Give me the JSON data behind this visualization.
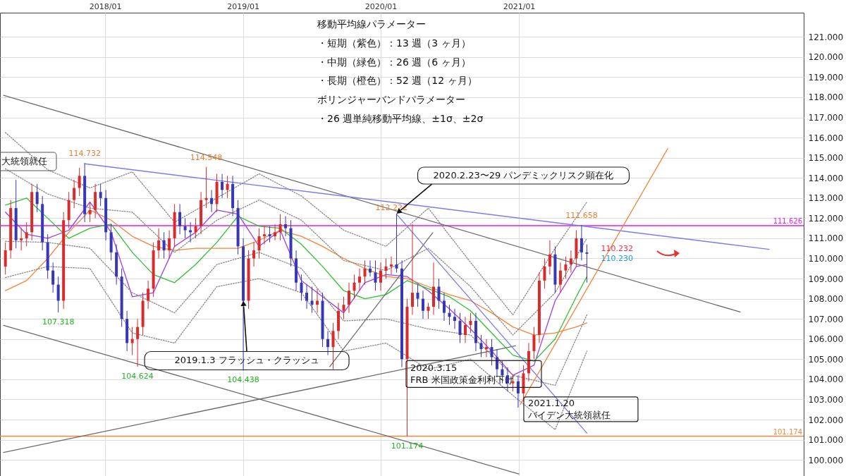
{
  "chart_data": {
    "type": "candlestick",
    "x": [
      "2017-04-12",
      "2017-04-26",
      "2017-05-10",
      "2017-05-24",
      "2017-06-07",
      "2017-06-21",
      "2017-07-05",
      "2017-07-19",
      "2017-08-02",
      "2017-08-16",
      "2017-08-30",
      "2017-09-13",
      "2017-09-27",
      "2017-10-11",
      "2017-10-25",
      "2017-11-08",
      "2017-11-22",
      "2017-12-06",
      "2017-12-20",
      "2018-01-03",
      "2018-01-17",
      "2018-01-31",
      "2018-02-14",
      "2018-02-28",
      "2018-03-14",
      "2018-03-28",
      "2018-04-11",
      "2018-04-25",
      "2018-05-09",
      "2018-05-23",
      "2018-06-06",
      "2018-06-20",
      "2018-07-04",
      "2018-07-18",
      "2018-08-01",
      "2018-08-15",
      "2018-08-29",
      "2018-09-12",
      "2018-09-26",
      "2018-10-10",
      "2018-10-24",
      "2018-11-07",
      "2018-11-21",
      "2018-12-05",
      "2018-12-19",
      "2019-01-02",
      "2019-01-16",
      "2019-01-30",
      "2019-02-13",
      "2019-02-27",
      "2019-03-13",
      "2019-03-27",
      "2019-04-10",
      "2019-04-24",
      "2019-05-08",
      "2019-05-22",
      "2019-06-05",
      "2019-06-19",
      "2019-07-03",
      "2019-07-17",
      "2019-07-31",
      "2019-08-14",
      "2019-08-28",
      "2019-09-11",
      "2019-09-25",
      "2019-10-09",
      "2019-10-23",
      "2019-11-06",
      "2019-11-20",
      "2019-12-04",
      "2019-12-18",
      "2020-01-01",
      "2020-01-15",
      "2020-01-29",
      "2020-02-12",
      "2020-02-26",
      "2020-03-11",
      "2020-03-25",
      "2020-04-08",
      "2020-04-22",
      "2020-05-06",
      "2020-05-20",
      "2020-06-03",
      "2020-06-17",
      "2020-07-01",
      "2020-07-15",
      "2020-07-29",
      "2020-08-12",
      "2020-08-26",
      "2020-09-09",
      "2020-09-23",
      "2020-10-07",
      "2020-10-21",
      "2020-11-04",
      "2020-11-18",
      "2020-12-02",
      "2020-12-16",
      "2020-12-30",
      "2021-01-13",
      "2021-01-27",
      "2021-02-10",
      "2021-02-24",
      "2021-03-10",
      "2021-03-24",
      "2021-04-07",
      "2021-04-21",
      "2021-05-05",
      "2021-05-19",
      "2021-06-02",
      "2021-06-16",
      "2021-06-30"
    ],
    "ohlc": [
      [
        109.6,
        110.8,
        109.2,
        110.4
      ],
      [
        110.4,
        112.9,
        110.0,
        112.5
      ],
      [
        112.5,
        113.9,
        110.5,
        110.9
      ],
      [
        110.9,
        111.5,
        110.4,
        111.0
      ],
      [
        111.0,
        111.8,
        110.6,
        111.3
      ],
      [
        111.3,
        113.7,
        110.9,
        113.3
      ],
      [
        113.3,
        113.7,
        112.3,
        112.7
      ],
      [
        112.7,
        113.1,
        110.4,
        110.8
      ],
      [
        110.8,
        111.2,
        109.0,
        109.4
      ],
      [
        109.4,
        109.8,
        108.3,
        108.7
      ],
      [
        108.7,
        109.1,
        107.318,
        107.9
      ],
      [
        107.9,
        112.3,
        107.5,
        111.9
      ],
      [
        111.9,
        113.3,
        111.5,
        112.9
      ],
      [
        112.9,
        113.9,
        112.5,
        113.5
      ],
      [
        113.5,
        114.5,
        113.1,
        114.1
      ],
      [
        114.1,
        114.732,
        111.8,
        112.2
      ],
      [
        112.2,
        112.8,
        111.8,
        112.4
      ],
      [
        112.4,
        113.7,
        112.0,
        113.3
      ],
      [
        113.3,
        113.7,
        112.6,
        113.0
      ],
      [
        113.0,
        113.4,
        110.9,
        111.3
      ],
      [
        111.3,
        111.7,
        109.9,
        110.3
      ],
      [
        110.3,
        110.7,
        108.7,
        109.1
      ],
      [
        109.1,
        109.5,
        106.6,
        107.0
      ],
      [
        107.0,
        107.4,
        105.4,
        105.8
      ],
      [
        105.8,
        106.6,
        105.2,
        106.0
      ],
      [
        106.0,
        107.0,
        104.624,
        106.6
      ],
      [
        106.6,
        108.3,
        106.2,
        107.9
      ],
      [
        107.9,
        108.9,
        107.5,
        108.5
      ],
      [
        108.5,
        110.8,
        108.1,
        110.4
      ],
      [
        110.4,
        111.5,
        110.0,
        110.9
      ],
      [
        110.9,
        111.3,
        110.0,
        110.4
      ],
      [
        110.4,
        111.4,
        110.0,
        111.0
      ],
      [
        111.0,
        112.7,
        110.6,
        112.3
      ],
      [
        112.3,
        112.7,
        111.2,
        111.6
      ],
      [
        111.6,
        112.0,
        111.0,
        111.4
      ],
      [
        111.4,
        111.8,
        110.8,
        111.3
      ],
      [
        111.3,
        112.0,
        111.0,
        111.6
      ],
      [
        111.6,
        113.3,
        111.2,
        112.9
      ],
      [
        112.9,
        114.548,
        112.5,
        113.0
      ],
      [
        113.0,
        113.4,
        112.3,
        112.7
      ],
      [
        112.7,
        114.2,
        112.3,
        113.8
      ],
      [
        113.8,
        114.2,
        113.0,
        113.4
      ],
      [
        113.4,
        114.1,
        113.0,
        113.7
      ],
      [
        113.7,
        114.1,
        112.1,
        112.5
      ],
      [
        112.5,
        112.9,
        110.2,
        110.6
      ],
      [
        110.6,
        111.0,
        104.438,
        107.9
      ],
      [
        107.9,
        110.4,
        107.5,
        110.0
      ],
      [
        110.0,
        110.8,
        109.6,
        110.4
      ],
      [
        110.4,
        111.5,
        110.0,
        111.1
      ],
      [
        111.1,
        111.6,
        110.7,
        111.2
      ],
      [
        111.2,
        111.6,
        110.8,
        111.1
      ],
      [
        111.1,
        111.7,
        110.9,
        111.3
      ],
      [
        111.3,
        112.2,
        110.9,
        111.7
      ],
      [
        111.7,
        112.1,
        111.1,
        111.5
      ],
      [
        111.5,
        111.9,
        109.6,
        110.0
      ],
      [
        110.0,
        110.4,
        108.4,
        108.8
      ],
      [
        108.8,
        109.2,
        107.9,
        108.3
      ],
      [
        108.3,
        108.7,
        107.5,
        107.9
      ],
      [
        107.9,
        108.6,
        107.3,
        107.7
      ],
      [
        107.7,
        108.5,
        107.3,
        107.9
      ],
      [
        107.9,
        108.3,
        105.6,
        106.0
      ],
      [
        106.0,
        106.4,
        105.2,
        105.6
      ],
      [
        105.6,
        106.8,
        104.5,
        106.4
      ],
      [
        106.4,
        107.8,
        106.0,
        107.4
      ],
      [
        107.4,
        108.1,
        107.0,
        107.7
      ],
      [
        107.7,
        108.8,
        107.3,
        108.4
      ],
      [
        108.4,
        109.2,
        108.0,
        108.8
      ],
      [
        108.8,
        109.5,
        108.4,
        109.1
      ],
      [
        109.1,
        109.9,
        108.7,
        109.5
      ],
      [
        109.5,
        109.9,
        109.1,
        109.3
      ],
      [
        109.3,
        109.9,
        108.4,
        108.8
      ],
      [
        108.8,
        109.8,
        108.4,
        109.4
      ],
      [
        109.4,
        110.0,
        109.0,
        109.6
      ],
      [
        109.6,
        110.1,
        109.2,
        109.7
      ],
      [
        109.7,
        112.222,
        109.3,
        109.5
      ],
      [
        109.5,
        109.9,
        104.6,
        105.0
      ],
      [
        105.0,
        108.0,
        101.174,
        107.6
      ],
      [
        107.6,
        111.7,
        107.2,
        108.3
      ],
      [
        108.3,
        108.7,
        107.6,
        108.0
      ],
      [
        108.0,
        108.4,
        107.0,
        107.4
      ],
      [
        107.4,
        107.8,
        107.0,
        107.6
      ],
      [
        107.6,
        109.8,
        107.2,
        108.6
      ],
      [
        108.6,
        109.0,
        107.5,
        107.9
      ],
      [
        107.9,
        108.3,
        106.9,
        107.3
      ],
      [
        107.3,
        107.7,
        106.7,
        107.1
      ],
      [
        107.1,
        107.5,
        106.5,
        106.9
      ],
      [
        106.9,
        107.3,
        105.8,
        106.2
      ],
      [
        106.2,
        107.1,
        105.8,
        106.7
      ],
      [
        106.7,
        107.3,
        106.3,
        106.9
      ],
      [
        106.9,
        107.3,
        105.4,
        105.8
      ],
      [
        105.8,
        106.2,
        105.1,
        105.5
      ],
      [
        105.5,
        106.0,
        105.1,
        105.6
      ],
      [
        105.6,
        106.0,
        104.7,
        105.1
      ],
      [
        105.1,
        105.5,
        104.1,
        104.5
      ],
      [
        104.5,
        104.9,
        103.8,
        104.2
      ],
      [
        104.2,
        104.6,
        103.4,
        103.8
      ],
      [
        103.8,
        104.2,
        103.4,
        103.9
      ],
      [
        103.9,
        104.2,
        102.6,
        103.3
      ],
      [
        103.3,
        104.7,
        102.9,
        104.3
      ],
      [
        104.3,
        105.8,
        103.9,
        105.4
      ],
      [
        105.4,
        106.6,
        105.0,
        106.2
      ],
      [
        106.2,
        109.3,
        105.8,
        108.9
      ],
      [
        108.9,
        110.0,
        108.5,
        109.6
      ],
      [
        109.6,
        110.9,
        109.2,
        110.2
      ],
      [
        110.2,
        110.6,
        108.3,
        108.7
      ],
      [
        108.7,
        109.8,
        108.3,
        109.4
      ],
      [
        109.4,
        110.1,
        109.0,
        109.7
      ],
      [
        109.7,
        110.4,
        109.3,
        110.0
      ],
      [
        110.0,
        111.4,
        109.6,
        111.0
      ],
      [
        111.0,
        111.658,
        109.9,
        110.3
      ],
      [
        110.3,
        110.7,
        108.8,
        110.232
      ]
    ],
    "colors": [
      "#d92b2b",
      "#d92b2b",
      "#3737b8",
      "#d92b2b",
      "#d92b2b",
      "#d92b2b",
      "#3737b8",
      "#3737b8",
      "#3737b8",
      "#3737b8",
      "#3737b8",
      "#d92b2b",
      "#d92b2b",
      "#d92b2b",
      "#d92b2b",
      "#3737b8",
      "#d92b2b",
      "#d92b2b",
      "#3737b8",
      "#3737b8",
      "#3737b8",
      "#3737b8",
      "#3737b8",
      "#3737b8",
      "#d92b2b",
      "#d92b2b",
      "#d92b2b",
      "#d92b2b",
      "#d92b2b",
      "#d92b2b",
      "#3737b8",
      "#d92b2b",
      "#d92b2b",
      "#3737b8",
      "#3737b8",
      "#3737b8",
      "#d92b2b",
      "#d92b2b",
      "#d92b2b",
      "#3737b8",
      "#d92b2b",
      "#3737b8",
      "#d92b2b",
      "#3737b8",
      "#3737b8",
      "#3737b8",
      "#d92b2b",
      "#d92b2b",
      "#d92b2b",
      "#d92b2b",
      "#3737b8",
      "#d92b2b",
      "#d92b2b",
      "#3737b8",
      "#3737b8",
      "#3737b8",
      "#3737b8",
      "#3737b8",
      "#3737b8",
      "#d92b2b",
      "#3737b8",
      "#3737b8",
      "#d92b2b",
      "#d92b2b",
      "#d92b2b",
      "#d92b2b",
      "#d92b2b",
      "#d92b2b",
      "#d92b2b",
      "#3737b8",
      "#3737b8",
      "#d92b2b",
      "#d92b2b",
      "#d92b2b",
      "#3737b8",
      "#3737b8",
      "#d92b2b",
      "#d92b2b",
      "#3737b8",
      "#3737b8",
      "#d92b2b",
      "#d92b2b",
      "#3737b8",
      "#3737b8",
      "#3737b8",
      "#3737b8",
      "#3737b8",
      "#d92b2b",
      "#d92b2b",
      "#3737b8",
      "#3737b8",
      "#d92b2b",
      "#3737b8",
      "#3737b8",
      "#3737b8",
      "#3737b8",
      "#d92b2b",
      "#3737b8",
      "#d92b2b",
      "#d92b2b",
      "#d92b2b",
      "#d92b2b",
      "#d92b2b",
      "#d92b2b",
      "#3737b8",
      "#d92b2b",
      "#d92b2b",
      "#d92b2b",
      "#d92b2b",
      "#3737b8",
      "#3737b8"
    ],
    "series": [
      {
        "type": "line",
        "color": "#a23ee8",
        "x": [
          "2017-04-12",
          "2017-06-07",
          "2017-08-02",
          "2017-09-27",
          "2017-11-22",
          "2018-01-17",
          "2018-03-14",
          "2018-05-09",
          "2018-07-04",
          "2018-08-29",
          "2018-10-24",
          "2018-12-19",
          "2019-02-13",
          "2019-04-10",
          "2019-06-05",
          "2019-07-31",
          "2019-09-25",
          "2019-11-20",
          "2020-01-15",
          "2020-03-11",
          "2020-05-06",
          "2020-07-01",
          "2020-08-26",
          "2020-10-21",
          "2020-12-16",
          "2021-02-10",
          "2021-04-07",
          "2021-06-02",
          "2021-06-30"
        ],
        "values": [
          112.3,
          111.2,
          111.0,
          111.4,
          112.8,
          111.3,
          108.1,
          108.3,
          110.6,
          111.3,
          112.4,
          112.2,
          110.6,
          111.4,
          108.9,
          108.1,
          107.3,
          108.8,
          109.2,
          109.1,
          108.4,
          107.5,
          106.5,
          105.4,
          104.2,
          104.7,
          107.9,
          109.6,
          109.7
        ]
      },
      {
        "type": "line",
        "color": "#2ec02e",
        "x": [
          "2017-04-12",
          "2017-06-07",
          "2017-08-02",
          "2017-09-27",
          "2017-11-22",
          "2018-01-17",
          "2018-03-14",
          "2018-05-09",
          "2018-07-04",
          "2018-08-29",
          "2018-10-24",
          "2018-12-19",
          "2019-02-13",
          "2019-04-10",
          "2019-06-05",
          "2019-07-31",
          "2019-09-25",
          "2019-11-20",
          "2020-01-15",
          "2020-03-11",
          "2020-05-06",
          "2020-07-01",
          "2020-08-26",
          "2020-10-21",
          "2020-12-16",
          "2021-02-10",
          "2021-04-07",
          "2021-06-02",
          "2021-06-30"
        ],
        "values": [
          112.65,
          113.0,
          112.0,
          111.0,
          111.5,
          111.7,
          110.3,
          109.2,
          108.8,
          109.7,
          110.8,
          112.1,
          111.6,
          111.5,
          110.7,
          109.6,
          108.4,
          108.0,
          108.2,
          108.9,
          108.5,
          108.1,
          107.4,
          106.3,
          105.2,
          104.9,
          106.0,
          108.1,
          109.1
        ]
      },
      {
        "type": "line",
        "color": "#f5843a",
        "x": [
          "2017-04-12",
          "2017-06-07",
          "2017-08-02",
          "2017-09-27",
          "2017-11-22",
          "2018-01-17",
          "2018-03-14",
          "2018-05-09",
          "2018-07-04",
          "2018-08-29",
          "2018-10-24",
          "2018-12-19",
          "2019-02-13",
          "2019-04-10",
          "2019-06-05",
          "2019-07-31",
          "2019-09-25",
          "2019-11-20",
          "2020-01-15",
          "2020-03-11",
          "2020-05-06",
          "2020-07-01",
          "2020-08-26",
          "2020-10-21",
          "2020-12-16",
          "2021-02-10",
          "2021-04-07",
          "2021-06-02",
          "2021-06-30"
        ],
        "values": [
          108.4,
          108.9,
          110.0,
          111.3,
          112.4,
          111.9,
          111.1,
          110.6,
          110.4,
          110.5,
          110.5,
          110.5,
          110.9,
          111.4,
          111.1,
          110.6,
          110.0,
          109.5,
          109.1,
          109.0,
          108.6,
          108.2,
          107.9,
          107.3,
          106.6,
          106.2,
          106.3,
          106.6,
          106.8
        ]
      },
      {
        "type": "line",
        "color": "#888888",
        "line_style": "dotted",
        "x": [
          "2017-04-12",
          "2017-08-02",
          "2017-11-22",
          "2018-03-14",
          "2018-07-04",
          "2018-10-24",
          "2019-02-13",
          "2019-06-05",
          "2019-09-25",
          "2020-01-15",
          "2020-05-06",
          "2020-08-26",
          "2020-12-16",
          "2021-04-07",
          "2021-06-30"
        ],
        "values": [
          116.25,
          114.4,
          113.5,
          114.3,
          111.8,
          113.0,
          114.2,
          113.1,
          111.4,
          110.6,
          112.5,
          109.8,
          107.2,
          110.5,
          112.8
        ]
      },
      {
        "type": "line",
        "color": "#888888",
        "line_style": "dotted",
        "x": [
          "2017-04-12",
          "2017-08-02",
          "2017-11-22",
          "2018-03-14",
          "2018-07-04",
          "2018-10-24",
          "2019-02-13",
          "2019-06-05",
          "2019-09-25",
          "2020-01-15",
          "2020-05-06",
          "2020-08-26",
          "2020-12-16",
          "2021-04-07",
          "2021-06-30"
        ],
        "values": [
          114.45,
          113.2,
          112.5,
          112.3,
          110.3,
          111.9,
          112.9,
          111.9,
          109.9,
          109.4,
          110.5,
          108.6,
          106.2,
          108.3,
          111.0
        ]
      },
      {
        "type": "line",
        "color": "#888888",
        "line_style": "dotted",
        "x": [
          "2017-04-12",
          "2017-08-02",
          "2017-11-22",
          "2018-03-14",
          "2018-07-04",
          "2018-10-24",
          "2019-02-13",
          "2019-06-05",
          "2019-09-25",
          "2020-01-15",
          "2020-05-06",
          "2020-08-26",
          "2020-12-16",
          "2021-04-07",
          "2021-06-30"
        ],
        "values": [
          110.85,
          110.8,
          110.5,
          108.3,
          107.3,
          109.7,
          110.3,
          109.5,
          106.9,
          107.0,
          106.5,
          106.2,
          104.2,
          103.7,
          107.2
        ]
      },
      {
        "type": "line",
        "color": "#888888",
        "line_style": "dotted",
        "x": [
          "2017-04-12",
          "2017-08-02",
          "2017-11-22",
          "2018-03-14",
          "2018-07-04",
          "2018-10-24",
          "2019-02-13",
          "2019-06-05",
          "2019-09-25",
          "2020-01-15",
          "2020-05-06",
          "2020-08-26",
          "2020-12-16",
          "2021-04-07",
          "2021-06-30"
        ],
        "values": [
          109.05,
          109.6,
          109.5,
          106.3,
          105.8,
          108.6,
          109.0,
          108.3,
          105.4,
          105.8,
          104.5,
          105.0,
          103.2,
          101.5,
          105.4
        ]
      },
      {
        "type": "line",
        "color": "#6b6b6b",
        "x": [
          "2017-04-07",
          "2022-08-10"
        ],
        "values": [
          118.1,
          107.34
        ]
      },
      {
        "type": "line",
        "color": "#6b6b6b",
        "x": [
          "2017-04-07",
          "2021-01-01"
        ],
        "values": [
          106.68,
          99.3
        ]
      },
      {
        "type": "line",
        "color": "#6b6b6b",
        "x": [
          "2017-04-07",
          "2020-12-23"
        ],
        "values": [
          100.37,
          105.66
        ]
      },
      {
        "type": "line",
        "color": "#6b6b6b",
        "x": [
          "2019-08-19",
          "2020-05-18"
        ],
        "values": [
          104.63,
          111.28
        ]
      },
      {
        "type": "line",
        "color": "#7b7bef",
        "x": [
          "2017-11-08",
          "2022-10-26"
        ],
        "values": [
          114.7,
          110.45
        ]
      },
      {
        "type": "line",
        "color": "#7b7bef",
        "x": [
          "2020-02-12",
          "2021-06-30"
        ],
        "values": [
          112.2,
          101.33
        ]
      },
      {
        "type": "line",
        "color": "#f5843a",
        "x": [
          "2021-01-05",
          "2022-01-30"
        ],
        "values": [
          102.76,
          115.45
        ]
      }
    ],
    "xlim": [
      "2017-04-07",
      "2023-01-16"
    ],
    "ylim": [
      99.2,
      122.2
    ],
    "xticks": [
      {
        "value": "2018-01-01",
        "label": "2018/01"
      },
      {
        "value": "2019-01-01",
        "label": "2019/01"
      },
      {
        "value": "2020-01-01",
        "label": "2020/01"
      },
      {
        "value": "2021-01-01",
        "label": "2021/01"
      }
    ],
    "yticks": [
      {
        "value": 100,
        "label": "100.000"
      },
      {
        "value": 101,
        "label": "101.000"
      },
      {
        "value": 102,
        "label": "102.000"
      },
      {
        "value": 103,
        "label": "103.000"
      },
      {
        "value": 104,
        "label": "104.000"
      },
      {
        "value": 105,
        "label": "105.000"
      },
      {
        "value": 106,
        "label": "106.000"
      },
      {
        "value": 107,
        "label": "107.000"
      },
      {
        "value": 108,
        "label": "108.000"
      },
      {
        "value": 109,
        "label": "109.000"
      },
      {
        "value": 110,
        "label": "110.000"
      },
      {
        "value": 111,
        "label": "111.000"
      },
      {
        "value": 112,
        "label": "112.000"
      },
      {
        "value": 113,
        "label": "113.000"
      },
      {
        "value": 114,
        "label": "114.000"
      },
      {
        "value": 115,
        "label": "115.000"
      },
      {
        "value": 116,
        "label": "116.000"
      },
      {
        "value": 117,
        "label": "117.000"
      },
      {
        "value": 118,
        "label": "118.000"
      },
      {
        "value": 119,
        "label": "119.000"
      },
      {
        "value": 120,
        "label": "120.000"
      },
      {
        "value": 121,
        "label": "121.000"
      }
    ],
    "grid": true,
    "ref_lines": [
      {
        "axis": "y",
        "value": 111.626,
        "label": "111.626",
        "color": "#e81ce8"
      },
      {
        "axis": "y",
        "value": 101.174,
        "label": "101.174",
        "color": "#f5843a"
      }
    ],
    "annotations": [
      "移動平均線パラメーター",
      "・短期（紫色）：13 週（3 ヶ月）",
      "・中期（緑色）：26 週（6 ヶ月）",
      "・長期（橙色）：52 週（12 ヶ月）",
      "ボリンジャーバンドパラメーター",
      "・26 週単純移動平均線、±1σ、±2σ",
      "大統領就任",
      {
        "text": "114.732",
        "x": "2017-11-08",
        "y": 114.732
      },
      {
        "text": "114.548",
        "x": "2018-09-26",
        "y": 114.548
      },
      {
        "text": "112.222",
        "x": "2020-02-12",
        "y": 112.222
      },
      {
        "text": "111.658",
        "x": "2021-06-16",
        "y": 111.658
      },
      {
        "text": "107.318",
        "x": "2017-08-30",
        "y": 107.318
      },
      {
        "text": "104.624",
        "x": "2018-03-28",
        "y": 104.624
      },
      {
        "text": "104.438",
        "x": "2019-01-02",
        "y": 104.438
      },
      {
        "text": "101.174",
        "x": "2020-03-11",
        "y": 101.174
      },
      {
        "text": "110.232",
        "x": "2021-06-30",
        "y": 110.232
      },
      {
        "text": "110.230",
        "x": "2021-06-30",
        "y": 110.232
      },
      {
        "text": "2020.2.23〜29 パンデミックリスク顕在化",
        "x": "2020-02-12",
        "y": 112.222
      },
      {
        "text": "2019.1.3 フラッシュ・クラッシュ",
        "x": "2019-01-02",
        "y": 107.9
      },
      {
        "text": "2020.3.15\nFRB 米国政策金利利下げ",
        "x": "2020-02-26",
        "y": 105.0
      },
      {
        "text": "2021.1.20\nバイデン大統領就任",
        "x": "2020-12-30",
        "y": 102.6
      }
    ]
  }
}
